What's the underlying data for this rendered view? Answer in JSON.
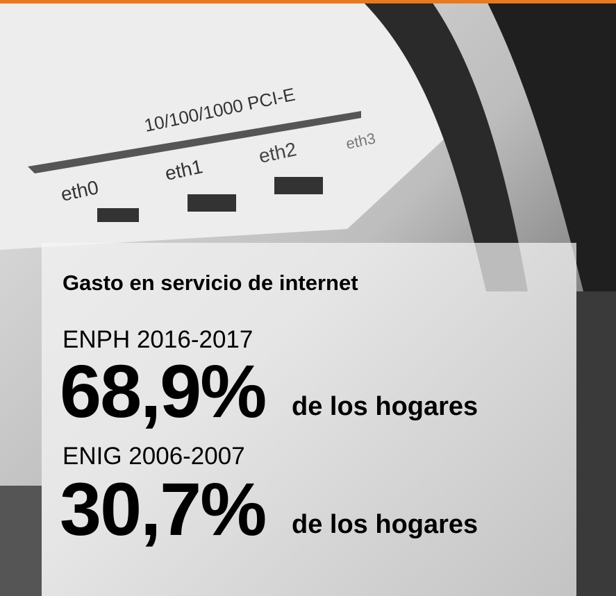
{
  "photo": {
    "labels": [
      "10/100/1000 PCI-E",
      "eth0",
      "eth1",
      "eth2",
      "eth3"
    ]
  },
  "title": "Gasto en servicio de internet",
  "stats": [
    {
      "survey": "ENPH 2016-2017",
      "value": "68,9%",
      "label": "de los hogares"
    },
    {
      "survey": "ENIG 2006-2007",
      "value": "30,7%",
      "label": "de los hogares"
    }
  ]
}
